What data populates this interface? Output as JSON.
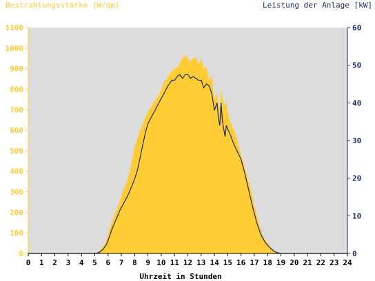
{
  "chart_data": {
    "type": "area",
    "title_left": "Bestrahlungsstärke [W/qm]",
    "title_right": "Leistung der Anlage [kW]",
    "xlabel": "Uhrzeit in Stunden",
    "x_ticks": [
      "0",
      "1",
      "2",
      "3",
      "4",
      "5",
      "6",
      "7",
      "8",
      "9",
      "10",
      "11",
      "12",
      "13",
      "14",
      "15",
      "16",
      "17",
      "18",
      "19",
      "20",
      "21",
      "22",
      "23",
      "24"
    ],
    "xlim": [
      0,
      24
    ],
    "y_left_ticks": [
      "0",
      "100",
      "200",
      "300",
      "400",
      "500",
      "600",
      "700",
      "800",
      "900",
      "1000",
      "1100"
    ],
    "ylim_left": [
      0,
      1100
    ],
    "y_right_ticks": [
      "0",
      "10",
      "20",
      "30",
      "40",
      "50",
      "60"
    ],
    "ylim_right": [
      0,
      60
    ],
    "grid": false,
    "colors": {
      "plot_background": "#dcdcdc",
      "irradiance_fill": "#ffcc33",
      "power_line": "#1a2a5e",
      "left_axis": "#ffcc33",
      "right_axis": "#1a2a5e"
    },
    "series": [
      {
        "axis": "left",
        "style": "filled-area",
        "x": [
          0,
          5,
          5.2,
          5.5,
          5.8,
          6.0,
          6.2,
          6.5,
          6.8,
          7.0,
          7.3,
          7.6,
          7.8,
          8.0,
          8.3,
          8.6,
          8.8,
          9.0,
          9.3,
          9.6,
          9.8,
          10.0,
          10.2,
          10.5,
          10.8,
          11.0,
          11.3,
          11.5,
          11.7,
          11.9,
          12.0,
          12.2,
          12.4,
          12.6,
          12.8,
          13.0,
          13.2,
          13.4,
          13.6,
          13.8,
          14.0,
          14.2,
          14.4,
          14.5,
          14.6,
          14.7,
          14.8,
          14.9,
          15.0,
          15.1,
          15.2,
          15.4,
          15.6,
          15.8,
          16.0,
          16.2,
          16.5,
          16.8,
          17.0,
          17.3,
          17.6,
          18.0,
          18.3,
          18.6,
          19.0,
          19.2,
          19.4,
          19.6,
          20,
          24
        ],
        "y": [
          0,
          0,
          5,
          20,
          50,
          90,
          140,
          190,
          240,
          280,
          330,
          390,
          450,
          520,
          580,
          630,
          660,
          690,
          720,
          750,
          770,
          800,
          830,
          860,
          890,
          900,
          910,
          940,
          960,
          965,
          950,
          935,
          950,
          955,
          920,
          950,
          900,
          910,
          840,
          870,
          750,
          780,
          690,
          800,
          760,
          730,
          710,
          750,
          690,
          660,
          640,
          610,
          580,
          530,
          480,
          440,
          370,
          300,
          230,
          160,
          90,
          50,
          25,
          10,
          3,
          0,
          0,
          0,
          0,
          0
        ]
      },
      {
        "axis": "right",
        "style": "line",
        "x": [
          0,
          5,
          5.3,
          5.6,
          5.9,
          6.1,
          6.3,
          6.6,
          6.9,
          7.2,
          7.5,
          7.8,
          8.0,
          8.2,
          8.5,
          8.8,
          9.0,
          9.3,
          9.6,
          9.9,
          10.2,
          10.5,
          10.8,
          11.0,
          11.2,
          11.4,
          11.6,
          11.8,
          12.0,
          12.2,
          12.4,
          12.6,
          12.8,
          13.0,
          13.2,
          13.4,
          13.6,
          13.8,
          14.0,
          14.2,
          14.3,
          14.4,
          14.5,
          14.6,
          14.7,
          14.8,
          14.9,
          15.0,
          15.2,
          15.4,
          15.6,
          15.8,
          16.0,
          16.3,
          16.6,
          16.9,
          17.2,
          17.5,
          17.8,
          18.1,
          18.4,
          18.7,
          19.0,
          19.3,
          19.6,
          20,
          24
        ],
        "y": [
          0,
          0,
          0.2,
          1.0,
          2.5,
          4.5,
          6.5,
          9.0,
          11.5,
          13.5,
          15.5,
          18.0,
          19.8,
          22.0,
          27.0,
          32.0,
          34.5,
          36.5,
          38.5,
          40.5,
          42.5,
          44.5,
          46.0,
          46.0,
          47.0,
          47.5,
          46.5,
          47.5,
          47.5,
          46.5,
          47.0,
          46.5,
          46.0,
          46.0,
          44.0,
          45.0,
          44.5,
          42.5,
          38.0,
          40.0,
          36.0,
          34.0,
          40.0,
          35.0,
          33.0,
          31.0,
          34.0,
          33.0,
          31.5,
          29.5,
          28.0,
          26.5,
          25.0,
          21.0,
          16.5,
          12.0,
          8.0,
          5.0,
          3.0,
          1.8,
          0.8,
          0.2,
          0,
          0,
          0,
          0,
          0
        ]
      }
    ]
  }
}
